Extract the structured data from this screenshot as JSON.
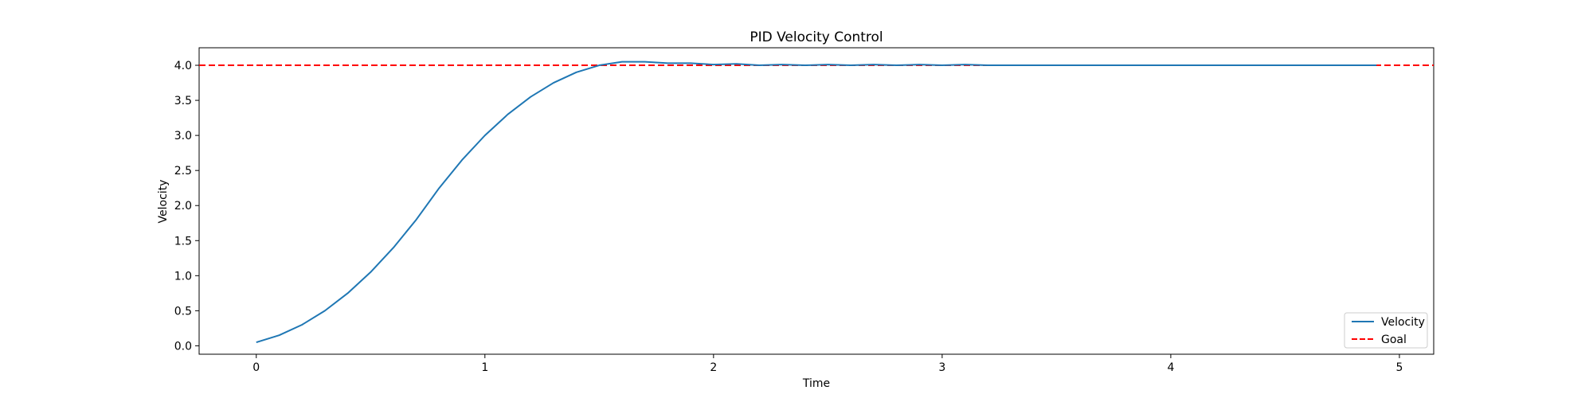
{
  "chart_data": {
    "type": "line",
    "title": "PID Velocity Control",
    "xlabel": "Time",
    "ylabel": "Velocity",
    "xlim": [
      -0.25,
      5.15
    ],
    "ylim": [
      -0.12,
      4.25
    ],
    "xticks": [
      0,
      1,
      2,
      3,
      4,
      5
    ],
    "xtick_labels": [
      "0",
      "1",
      "2",
      "3",
      "4",
      "5"
    ],
    "yticks": [
      0.0,
      0.5,
      1.0,
      1.5,
      2.0,
      2.5,
      3.0,
      3.5,
      4.0
    ],
    "ytick_labels": [
      "0.0",
      "0.5",
      "1.0",
      "1.5",
      "2.0",
      "2.5",
      "3.0",
      "3.5",
      "4.0"
    ],
    "grid": false,
    "legend_position": "bottom-right",
    "series": [
      {
        "name": "Velocity",
        "color": "#1f77b4",
        "style": "solid",
        "x": [
          0.0,
          0.1,
          0.2,
          0.3,
          0.4,
          0.5,
          0.6,
          0.7,
          0.8,
          0.9,
          1.0,
          1.1,
          1.2,
          1.3,
          1.4,
          1.5,
          1.6,
          1.7,
          1.8,
          1.9,
          2.0,
          2.1,
          2.2,
          2.3,
          2.4,
          2.5,
          2.6,
          2.7,
          2.8,
          2.9,
          3.0,
          3.1,
          3.2,
          3.3,
          3.4,
          3.5,
          3.6,
          3.7,
          3.8,
          3.9,
          4.0,
          4.1,
          4.2,
          4.3,
          4.4,
          4.5,
          4.6,
          4.7,
          4.8,
          4.9
        ],
        "y": [
          0.05,
          0.15,
          0.3,
          0.5,
          0.75,
          1.05,
          1.4,
          1.8,
          2.25,
          2.65,
          3.0,
          3.3,
          3.55,
          3.75,
          3.9,
          4.0,
          4.05,
          4.05,
          4.03,
          4.03,
          4.01,
          4.02,
          4.0,
          4.01,
          4.0,
          4.01,
          4.0,
          4.01,
          4.0,
          4.01,
          4.0,
          4.01,
          4.0,
          4.0,
          4.0,
          4.0,
          4.0,
          4.0,
          4.0,
          4.0,
          4.0,
          4.0,
          4.0,
          4.0,
          4.0,
          4.0,
          4.0,
          4.0,
          4.0,
          4.0
        ]
      },
      {
        "name": "Goal",
        "color": "#ff0000",
        "style": "dashed",
        "y_constant": 4.0
      }
    ]
  }
}
